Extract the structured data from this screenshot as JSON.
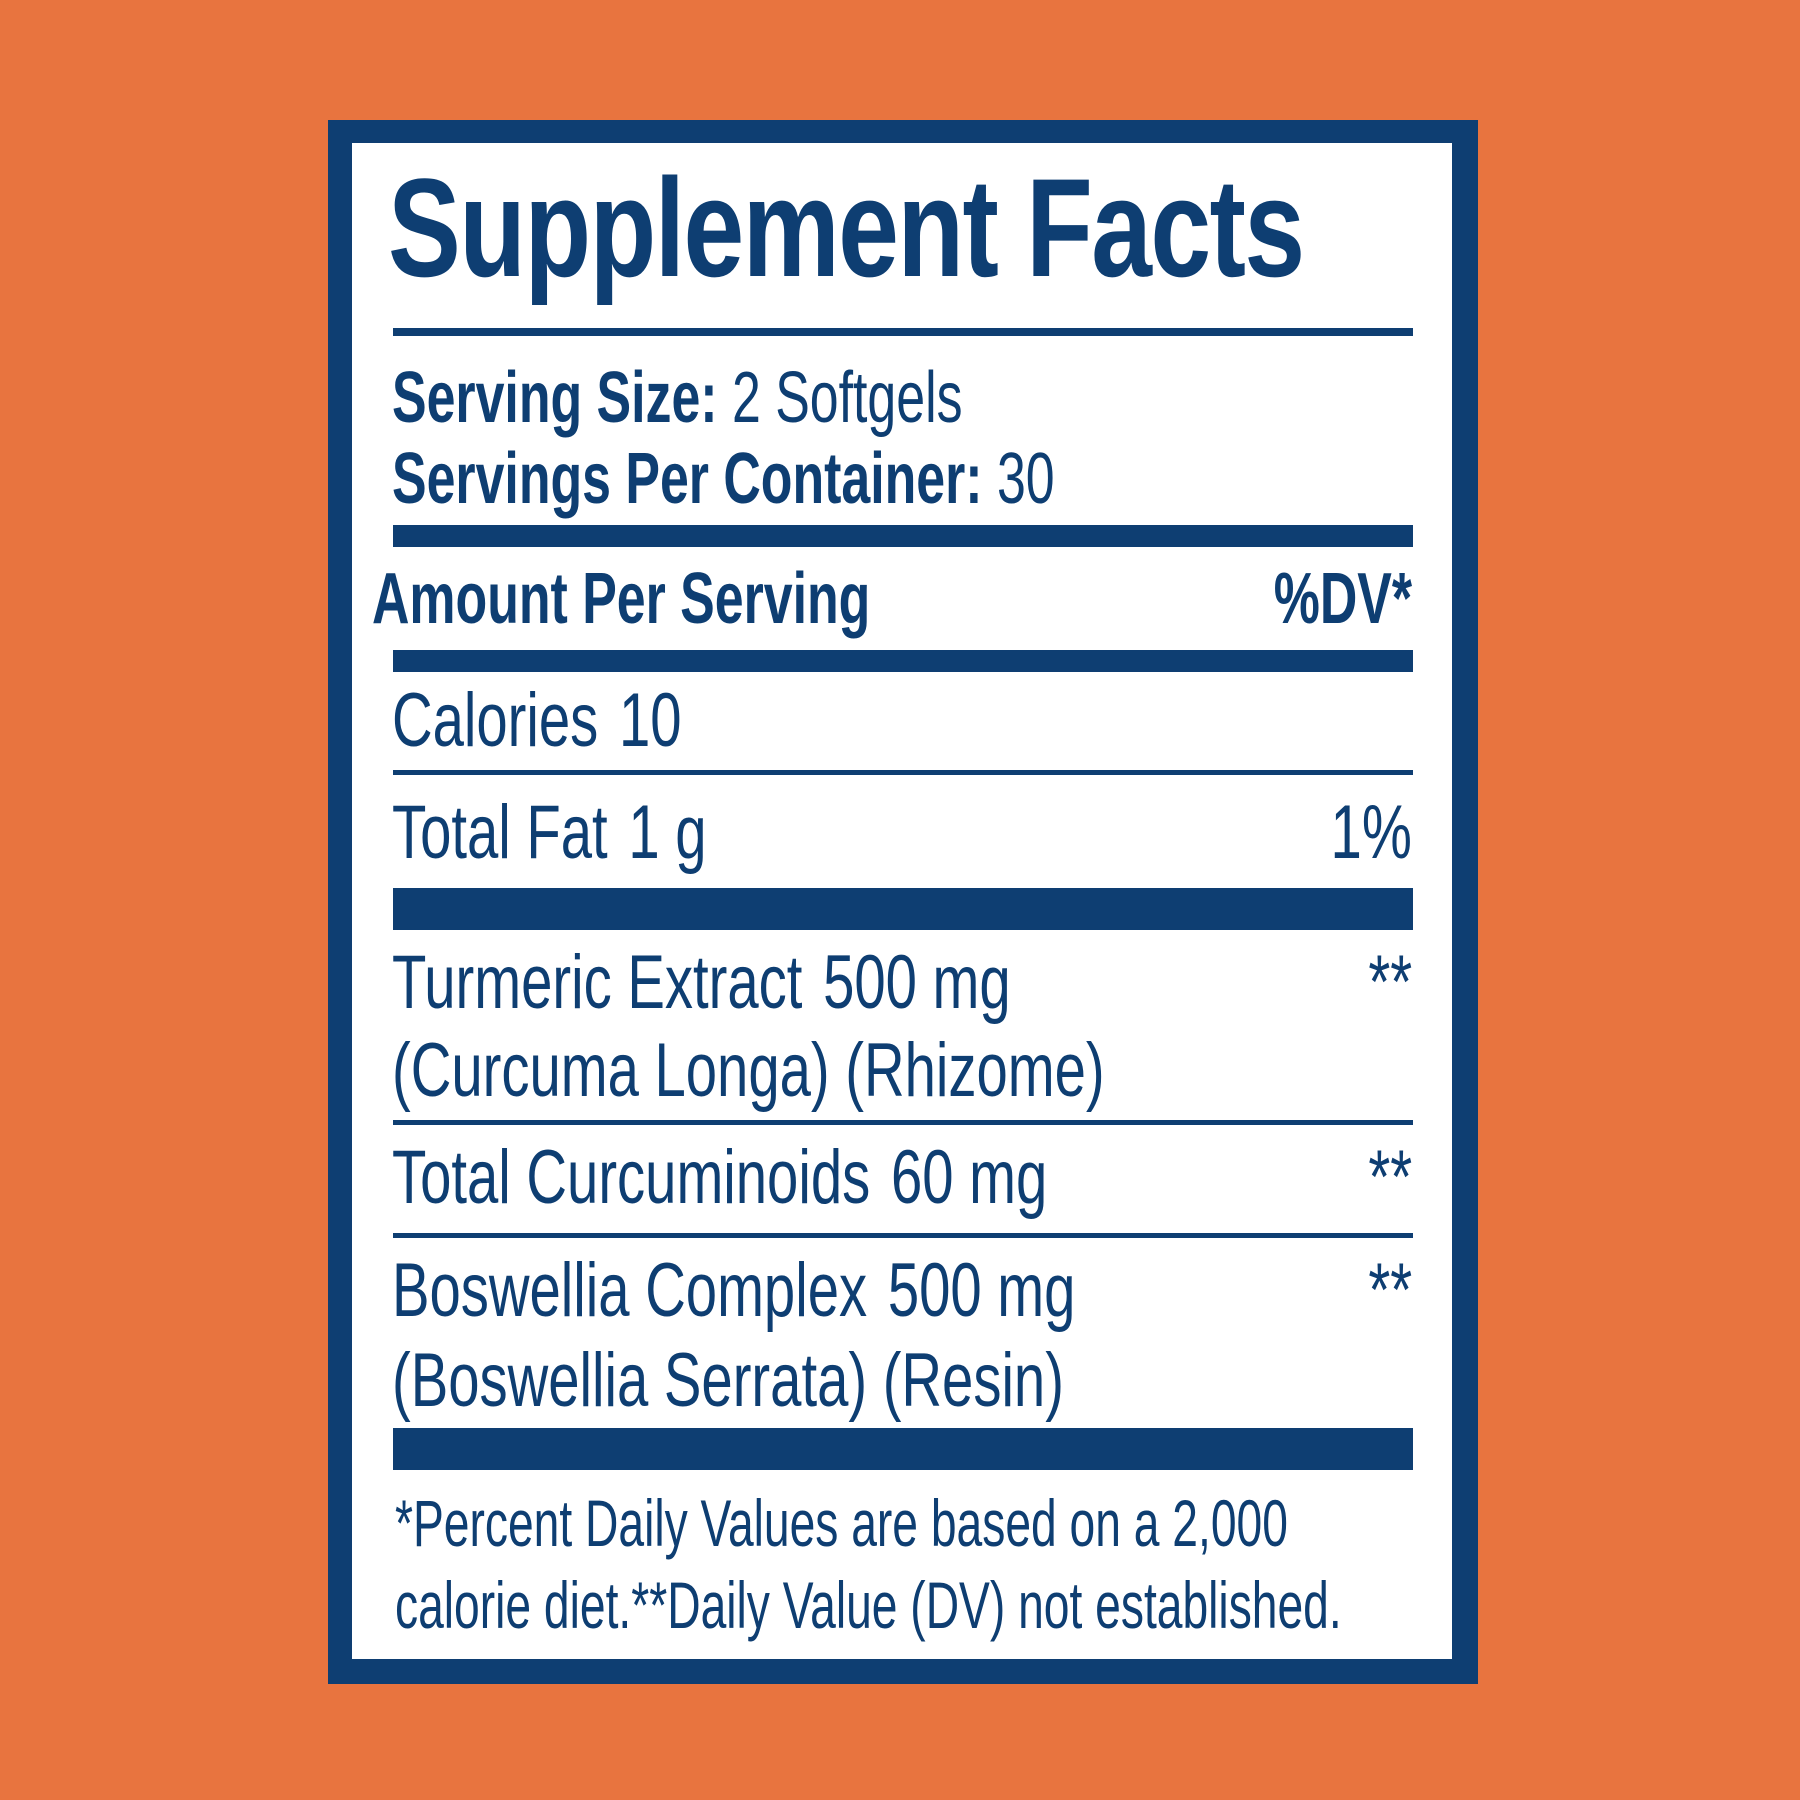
{
  "label": {
    "title": "Supplement Facts",
    "serving_size_label": "Serving Size:",
    "serving_size_value": "2 Softgels",
    "servings_per_container_label": "Servings Per Container:",
    "servings_per_container_value": "30",
    "amount_per_serving": "Amount Per Serving",
    "dv_header": "%DV*",
    "rows": [
      {
        "name": "Calories",
        "amount": "10",
        "dv": ""
      },
      {
        "name": "Total Fat",
        "amount": "1 g",
        "dv": "1%"
      },
      {
        "name": "Turmeric Extract",
        "amount": "500 mg",
        "sub": "(Curcuma Longa) (Rhizome)",
        "dv": "**"
      },
      {
        "name": "Total Curcuminoids",
        "amount": "60 mg",
        "dv": "**"
      },
      {
        "name": "Boswellia Complex",
        "amount": "500 mg",
        "sub": "(Boswellia Serrata) (Resin)",
        "dv": "**"
      }
    ],
    "footnote_line1": "*Percent Daily Values are based on a 2,000",
    "footnote_line2": "calorie diet.**Daily Value (DV) not established."
  },
  "colors": {
    "background": "#E8743F",
    "ink": "#0E3E72",
    "label_fill": "#FFFFFF"
  }
}
